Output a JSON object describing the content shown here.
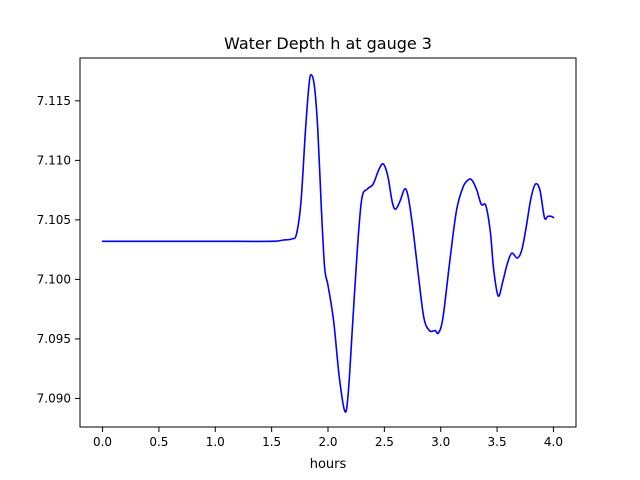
{
  "chart_data": {
    "type": "line",
    "title": "Water Depth h at gauge 3",
    "xlabel": "hours",
    "ylabel": "",
    "xlim": [
      -0.2,
      4.2
    ],
    "ylim": [
      7.0876,
      7.1186
    ],
    "grid": false,
    "x_ticks": [
      0.0,
      0.5,
      1.0,
      1.5,
      2.0,
      2.5,
      3.0,
      3.5,
      4.0
    ],
    "x_tick_labels": [
      "0.0",
      "0.5",
      "1.0",
      "1.5",
      "2.0",
      "2.5",
      "3.0",
      "3.5",
      "4.0"
    ],
    "y_ticks": [
      7.09,
      7.095,
      7.1,
      7.105,
      7.11,
      7.115
    ],
    "y_tick_labels": [
      "7.090",
      "7.095",
      "7.100",
      "7.105",
      "7.110",
      "7.115"
    ],
    "series": [
      {
        "color": "#0000ff",
        "x": [
          0.0,
          0.5,
          1.0,
          1.5,
          1.6,
          1.68,
          1.72,
          1.76,
          1.8,
          1.83,
          1.85,
          1.88,
          1.91,
          1.94,
          1.97,
          2.0,
          2.05,
          2.1,
          2.15,
          2.18,
          2.22,
          2.26,
          2.3,
          2.35,
          2.4,
          2.45,
          2.49,
          2.53,
          2.57,
          2.6,
          2.64,
          2.68,
          2.71,
          2.75,
          2.8,
          2.85,
          2.9,
          2.95,
          2.98,
          3.02,
          3.08,
          3.14,
          3.2,
          3.25,
          3.28,
          3.32,
          3.36,
          3.4,
          3.44,
          3.47,
          3.51,
          3.55,
          3.59,
          3.63,
          3.68,
          3.72,
          3.76,
          3.8,
          3.84,
          3.88,
          3.92,
          3.95,
          3.98,
          4.0
        ],
        "y": [
          7.1032,
          7.1032,
          7.1032,
          7.1032,
          7.1033,
          7.1034,
          7.1038,
          7.1065,
          7.1125,
          7.1162,
          7.1172,
          7.1162,
          7.1125,
          7.1062,
          7.101,
          7.0995,
          7.0965,
          7.0918,
          7.0889,
          7.0905,
          7.0965,
          7.1025,
          7.1068,
          7.1076,
          7.108,
          7.1092,
          7.1097,
          7.1087,
          7.1065,
          7.1059,
          7.1066,
          7.1076,
          7.107,
          7.1045,
          7.1005,
          7.0968,
          7.0957,
          7.0957,
          7.0955,
          7.0968,
          7.1015,
          7.1058,
          7.1078,
          7.1084,
          7.1083,
          7.1075,
          7.1063,
          7.1062,
          7.104,
          7.1008,
          7.0986,
          7.0998,
          7.1013,
          7.1022,
          7.1018,
          7.1025,
          7.1045,
          7.1068,
          7.108,
          7.1075,
          7.1052,
          7.1053,
          7.1053,
          7.1052
        ]
      }
    ]
  }
}
